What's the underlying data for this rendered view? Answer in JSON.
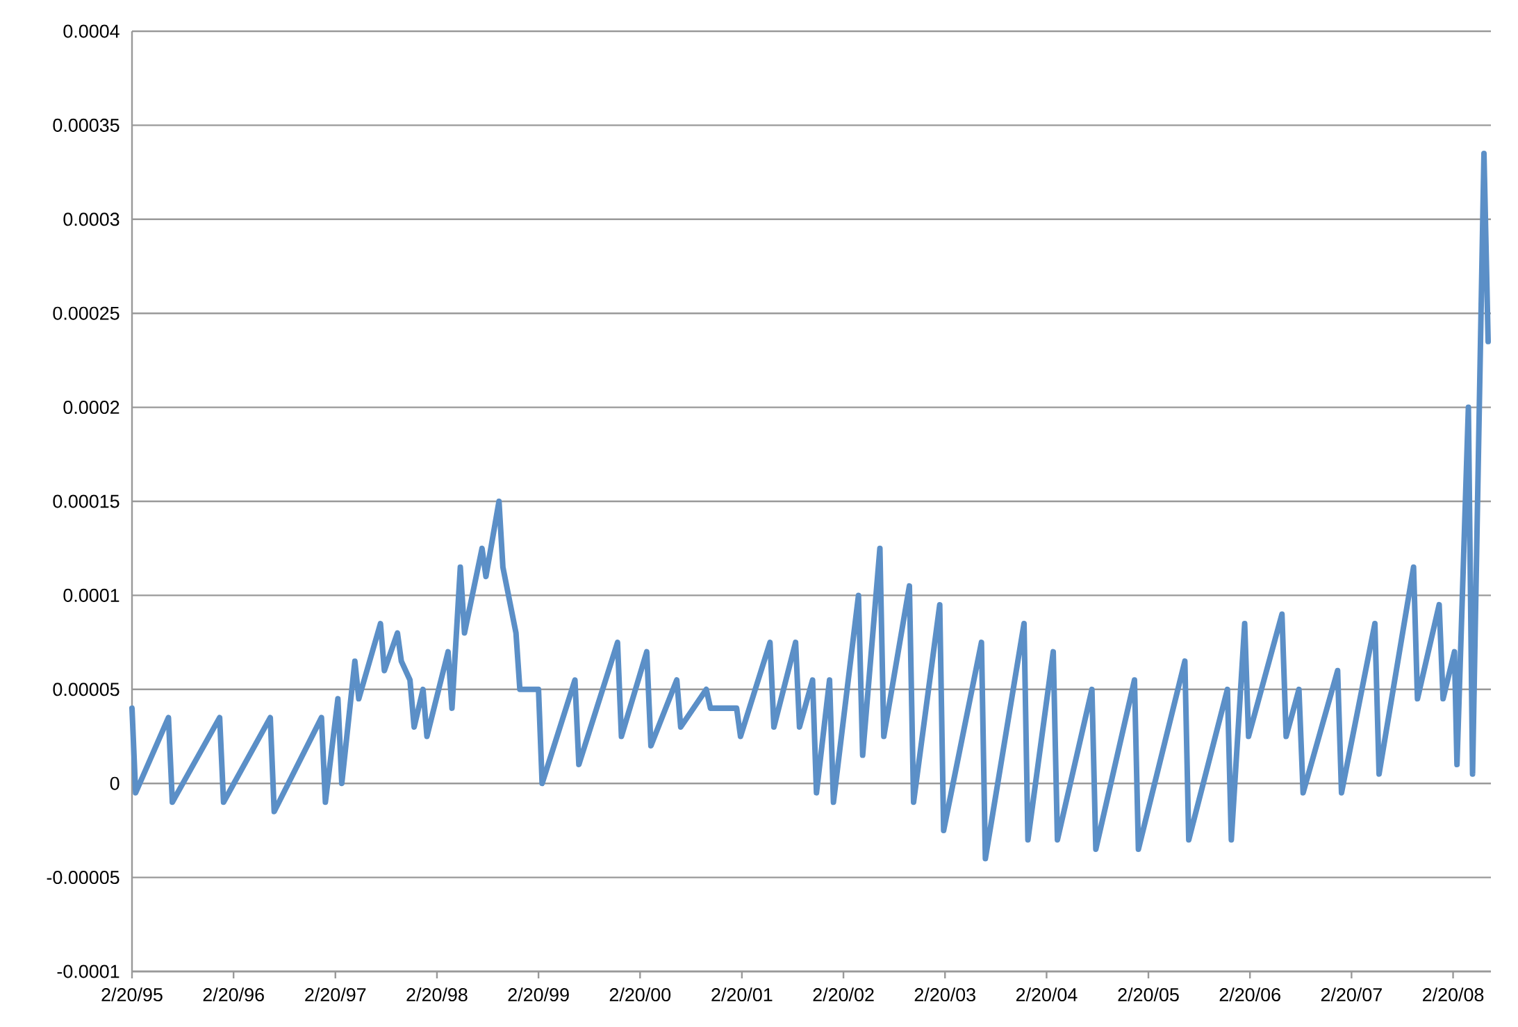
{
  "chart_data": {
    "type": "line",
    "grid": "y",
    "line_style": "solid",
    "x": [
      "1995-02-20",
      "1995-03-05",
      "1995-07-01",
      "1995-07-15",
      "1996-01-01",
      "1996-01-15",
      "1996-07-01",
      "1996-07-15",
      "1997-01-01",
      "1997-01-15",
      "1997-03-01",
      "1997-03-15",
      "1997-05-01",
      "1997-05-15",
      "1997-08-01",
      "1997-08-15",
      "1997-10-01",
      "1997-10-15",
      "1997-11-15",
      "1997-11-30",
      "1998-01-01",
      "1998-01-15",
      "1998-04-01",
      "1998-04-15",
      "1998-05-15",
      "1998-05-30",
      "1998-08-01",
      "1998-08-15",
      "1998-10-01",
      "1998-10-15",
      "1998-12-01",
      "1998-12-15",
      "1999-02-20",
      "1999-03-05",
      "1999-07-01",
      "1999-07-15",
      "1999-12-01",
      "1999-12-15",
      "2000-03-15",
      "2000-03-30",
      "2000-07-01",
      "2000-07-15",
      "2000-10-15",
      "2000-10-30",
      "2001-02-01",
      "2001-02-15",
      "2001-06-01",
      "2001-06-15",
      "2001-09-01",
      "2001-09-15",
      "2001-11-01",
      "2001-11-15",
      "2002-01-01",
      "2002-01-15",
      "2002-04-15",
      "2002-04-30",
      "2002-07-01",
      "2002-07-15",
      "2002-10-15",
      "2002-10-30",
      "2003-02-01",
      "2003-02-15",
      "2003-07-01",
      "2003-07-15",
      "2003-12-01",
      "2003-12-15",
      "2004-03-15",
      "2004-03-30",
      "2004-08-01",
      "2004-08-15",
      "2005-01-01",
      "2005-01-15",
      "2005-07-01",
      "2005-07-15",
      "2005-12-01",
      "2005-12-15",
      "2006-02-01",
      "2006-02-15",
      "2006-06-15",
      "2006-06-30",
      "2006-08-15",
      "2006-08-30",
      "2007-01-01",
      "2007-01-15",
      "2007-05-15",
      "2007-05-30",
      "2007-10-01",
      "2007-10-15",
      "2008-01-01",
      "2008-01-15",
      "2008-02-25",
      "2008-03-05",
      "2008-04-15",
      "2008-04-30",
      "2008-06-10",
      "2008-06-25"
    ],
    "series": [
      {
        "color": "#5b8fc7",
        "values": [
          4e-05,
          -5e-06,
          3.5e-05,
          -1e-05,
          3.5e-05,
          -1e-05,
          3.5e-05,
          -1.5e-05,
          3.5e-05,
          -1e-05,
          4.5e-05,
          0.0,
          6.5e-05,
          4.5e-05,
          8.5e-05,
          6e-05,
          8e-05,
          6.5e-05,
          5.5e-05,
          3e-05,
          5e-05,
          2.5e-05,
          7e-05,
          4e-05,
          0.000115,
          8e-05,
          0.000125,
          0.00011,
          0.00015,
          0.000115,
          8e-05,
          5e-05,
          5e-05,
          0.0,
          5.5e-05,
          1e-05,
          7.5e-05,
          2.5e-05,
          7e-05,
          2e-05,
          5.5e-05,
          3e-05,
          5e-05,
          4e-05,
          4e-05,
          2.5e-05,
          7.5e-05,
          3e-05,
          7.5e-05,
          3e-05,
          5.5e-05,
          -5e-06,
          5.5e-05,
          -1e-05,
          0.0001,
          1.5e-05,
          0.000125,
          2.5e-05,
          0.000105,
          -1e-05,
          9.5e-05,
          -2.5e-05,
          7.5e-05,
          -4e-05,
          8.5e-05,
          -3e-05,
          7e-05,
          -3e-05,
          5e-05,
          -3.5e-05,
          5.5e-05,
          -3.5e-05,
          6.5e-05,
          -3e-05,
          5e-05,
          -3e-05,
          8.5e-05,
          2.5e-05,
          9e-05,
          2.5e-05,
          5e-05,
          -5e-06,
          6e-05,
          -5e-06,
          8.5e-05,
          5e-06,
          0.000115,
          4.5e-05,
          9.5e-05,
          4.5e-05,
          7e-05,
          1e-05,
          0.0002,
          5e-06,
          0.000335,
          0.000235
        ]
      }
    ],
    "xlim": [
      "1995-02-20",
      "2008-07-05"
    ],
    "ylim": [
      -0.0001,
      0.0004
    ],
    "xticks": [
      {
        "value": "1995-02-20",
        "label": "2/20/95"
      },
      {
        "value": "1996-02-20",
        "label": "2/20/96"
      },
      {
        "value": "1997-02-20",
        "label": "2/20/97"
      },
      {
        "value": "1998-02-20",
        "label": "2/20/98"
      },
      {
        "value": "1999-02-20",
        "label": "2/20/99"
      },
      {
        "value": "2000-02-20",
        "label": "2/20/00"
      },
      {
        "value": "2001-02-20",
        "label": "2/20/01"
      },
      {
        "value": "2002-02-20",
        "label": "2/20/02"
      },
      {
        "value": "2003-02-20",
        "label": "2/20/03"
      },
      {
        "value": "2004-02-20",
        "label": "2/20/04"
      },
      {
        "value": "2005-02-20",
        "label": "2/20/05"
      },
      {
        "value": "2006-02-20",
        "label": "2/20/06"
      },
      {
        "value": "2007-02-20",
        "label": "2/20/07"
      },
      {
        "value": "2008-02-20",
        "label": "2/20/08"
      }
    ],
    "yticks": [
      {
        "value": -0.0001,
        "label": "-0.0001"
      },
      {
        "value": -5e-05,
        "label": "-0.00005"
      },
      {
        "value": 0,
        "label": "0"
      },
      {
        "value": 5e-05,
        "label": "0.00005"
      },
      {
        "value": 0.0001,
        "label": "0.0001"
      },
      {
        "value": 0.00015,
        "label": "0.00015"
      },
      {
        "value": 0.0002,
        "label": "0.0002"
      },
      {
        "value": 0.00025,
        "label": "0.00025"
      },
      {
        "value": 0.0003,
        "label": "0.0003"
      },
      {
        "value": 0.00035,
        "label": "0.00035"
      },
      {
        "value": 0.0004,
        "label": "0.0004"
      }
    ]
  }
}
